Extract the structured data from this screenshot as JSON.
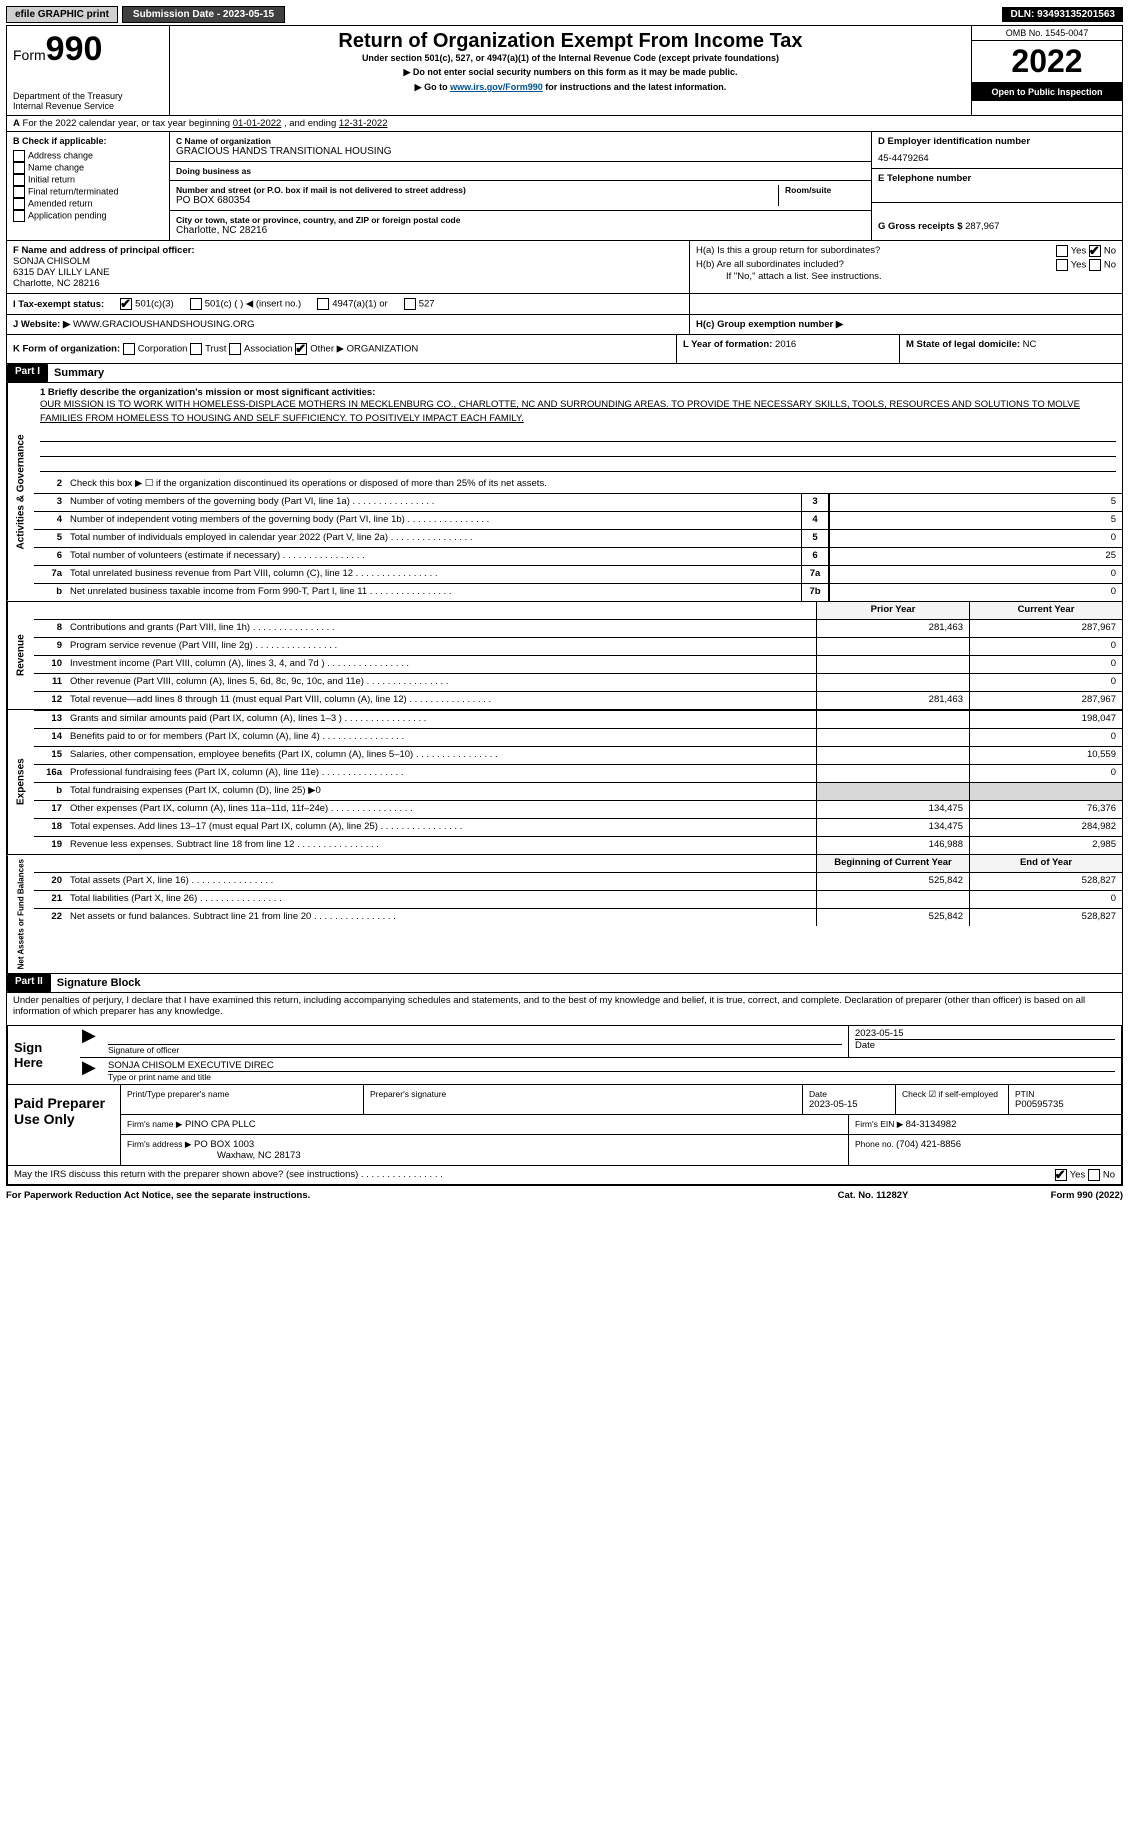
{
  "topbar": {
    "efile": "efile GRAPHIC print",
    "sub_label": "Submission Date - 2023-05-15",
    "dln": "DLN: 93493135201563"
  },
  "header": {
    "form_word": "Form",
    "form_no": "990",
    "dept1": "Department of the Treasury",
    "dept2": "Internal Revenue Service",
    "title": "Return of Organization Exempt From Income Tax",
    "sub1": "Under section 501(c), 527, or 4947(a)(1) of the Internal Revenue Code (except private foundations)",
    "sub2": "▶ Do not enter social security numbers on this form as it may be made public.",
    "sub3_pre": "▶ Go to ",
    "sub3_link": "www.irs.gov/Form990",
    "sub3_post": " for instructions and the latest information.",
    "omb": "OMB No. 1545-0047",
    "year": "2022",
    "open": "Open to Public Inspection"
  },
  "line_a": {
    "text_pre": "For the 2022 calendar year, or tax year beginning ",
    "begin": "01-01-2022",
    "mid": "   , and ending ",
    "end": "12-31-2022"
  },
  "col_b": {
    "hdr": "B Check if applicable:",
    "opts": [
      "Address change",
      "Name change",
      "Initial return",
      "Final return/terminated",
      "Amended return",
      "Application pending"
    ]
  },
  "col_c": {
    "name_lbl": "C Name of organization",
    "name": "GRACIOUS HANDS TRANSITIONAL HOUSING",
    "dba_lbl": "Doing business as",
    "dba": "",
    "street_lbl": "Number and street (or P.O. box if mail is not delivered to street address)",
    "room_lbl": "Room/suite",
    "street": "PO BOX 680354",
    "city_lbl": "City or town, state or province, country, and ZIP or foreign postal code",
    "city": "Charlotte, NC  28216"
  },
  "col_d": {
    "d_lbl": "D Employer identification number",
    "ein": "45-4479264",
    "e_lbl": "E Telephone number",
    "phone": "",
    "g_lbl": "G Gross receipts $ ",
    "g_val": "287,967"
  },
  "row_f": {
    "f_lbl": "F  Name and address of principal officer:",
    "f_name": "SONJA CHISOLM",
    "f_addr1": "6315 DAY LILLY LANE",
    "f_addr2": "Charlotte, NC  28216",
    "ha": "H(a)  Is this a group return for subordinates?",
    "hb": "H(b)  Are all subordinates included?",
    "hb_note": "If \"No,\" attach a list. See instructions.",
    "yes": "Yes",
    "no": "No"
  },
  "row_i": {
    "lbl": "I   Tax-exempt status:",
    "c3": "501(c)(3)",
    "c": "501(c) (    ) ◀ (insert no.)",
    "a1": "4947(a)(1) or",
    "_527": "527"
  },
  "row_j": {
    "lbl": "J   Website: ▶",
    "val": "WWW.GRACIOUSHANDSHOUSING.ORG",
    "hc": "H(c)  Group exemption number ▶"
  },
  "row_k": {
    "k_lbl": "K Form of organization:",
    "corp": "Corporation",
    "trust": "Trust",
    "assoc": "Association",
    "other": "Other ▶",
    "other_val": "ORGANIZATION",
    "l_lbl": "L Year of formation: ",
    "l_val": "2016",
    "m_lbl": "M State of legal domicile: ",
    "m_val": "NC"
  },
  "parts": {
    "p1": "Part I",
    "p1_title": "Summary",
    "p2": "Part II",
    "p2_title": "Signature Block"
  },
  "mission": {
    "lbl": "1  Briefly describe the organization's mission or most significant activities:",
    "text": "OUR MISSION IS TO WORK WITH HOMELESS-DISPLACE MOTHERS IN MECKLENBURG CO., CHARLOTTE, NC AND SURROUNDING AREAS. TO PROVIDE THE NECESSARY SKILLS, TOOLS, RESOURCES AND SOLUTIONS TO MOLVE FAMILIES FROM HOMELESS TO HOUSING AND SELF SUFFICIENCY. TO POSITIVELY IMPACT EACH FAMILY."
  },
  "sections": {
    "ag": "Activities & Governance",
    "rev": "Revenue",
    "exp": "Expenses",
    "net": "Net Assets or Fund Balances"
  },
  "ag_rows": [
    {
      "n": "2",
      "d": "Check this box ▶ ☐  if the organization discontinued its operations or disposed of more than 25% of its net assets."
    },
    {
      "n": "3",
      "d": "Number of voting members of the governing body (Part VI, line 1a)",
      "box": "3",
      "v": "5"
    },
    {
      "n": "4",
      "d": "Number of independent voting members of the governing body (Part VI, line 1b)",
      "box": "4",
      "v": "5"
    },
    {
      "n": "5",
      "d": "Total number of individuals employed in calendar year 2022 (Part V, line 2a)",
      "box": "5",
      "v": "0"
    },
    {
      "n": "6",
      "d": "Total number of volunteers (estimate if necessary)",
      "box": "6",
      "v": "25"
    },
    {
      "n": "7a",
      "d": "Total unrelated business revenue from Part VIII, column (C), line 12",
      "box": "7a",
      "v": "0"
    },
    {
      "n": "b",
      "d": "Net unrelated business taxable income from Form 990-T, Part I, line 11",
      "box": "7b",
      "v": "0"
    }
  ],
  "py_cy": {
    "py": "Prior Year",
    "cy": "Current Year"
  },
  "rev_rows": [
    {
      "n": "8",
      "d": "Contributions and grants (Part VIII, line 1h)",
      "py": "281,463",
      "cy": "287,967"
    },
    {
      "n": "9",
      "d": "Program service revenue (Part VIII, line 2g)",
      "py": "",
      "cy": "0"
    },
    {
      "n": "10",
      "d": "Investment income (Part VIII, column (A), lines 3, 4, and 7d )",
      "py": "",
      "cy": "0"
    },
    {
      "n": "11",
      "d": "Other revenue (Part VIII, column (A), lines 5, 6d, 8c, 9c, 10c, and 11e)",
      "py": "",
      "cy": "0"
    },
    {
      "n": "12",
      "d": "Total revenue—add lines 8 through 11 (must equal Part VIII, column (A), line 12)",
      "py": "281,463",
      "cy": "287,967"
    }
  ],
  "exp_rows": [
    {
      "n": "13",
      "d": "Grants and similar amounts paid (Part IX, column (A), lines 1–3 )",
      "py": "",
      "cy": "198,047"
    },
    {
      "n": "14",
      "d": "Benefits paid to or for members (Part IX, column (A), line 4)",
      "py": "",
      "cy": "0"
    },
    {
      "n": "15",
      "d": "Salaries, other compensation, employee benefits (Part IX, column (A), lines 5–10)",
      "py": "",
      "cy": "10,559"
    },
    {
      "n": "16a",
      "d": "Professional fundraising fees (Part IX, column (A), line 11e)",
      "py": "",
      "cy": "0"
    },
    {
      "n": "b",
      "d": "Total fundraising expenses (Part IX, column (D), line 25) ▶0",
      "grey": true
    },
    {
      "n": "17",
      "d": "Other expenses (Part IX, column (A), lines 11a–11d, 11f–24e)",
      "py": "134,475",
      "cy": "76,376"
    },
    {
      "n": "18",
      "d": "Total expenses. Add lines 13–17 (must equal Part IX, column (A), line 25)",
      "py": "134,475",
      "cy": "284,982"
    },
    {
      "n": "19",
      "d": "Revenue less expenses. Subtract line 18 from line 12",
      "py": "146,988",
      "cy": "2,985"
    }
  ],
  "net_hdr": {
    "py": "Beginning of Current Year",
    "cy": "End of Year"
  },
  "net_rows": [
    {
      "n": "20",
      "d": "Total assets (Part X, line 16)",
      "py": "525,842",
      "cy": "528,827"
    },
    {
      "n": "21",
      "d": "Total liabilities (Part X, line 26)",
      "py": "",
      "cy": "0"
    },
    {
      "n": "22",
      "d": "Net assets or fund balances. Subtract line 21 from line 20",
      "py": "525,842",
      "cy": "528,827"
    }
  ],
  "sig": {
    "decl": "Under penalties of perjury, I declare that I have examined this return, including accompanying schedules and statements, and to the best of my knowledge and belief, it is true, correct, and complete. Declaration of preparer (other than officer) is based on all information of which preparer has any knowledge.",
    "sign_here": "Sign Here",
    "sig_of_officer": "Signature of officer",
    "date_lbl": "Date",
    "sig_date": "2023-05-15",
    "name_title": "SONJA CHISOLM  EXECUTIVE DIREC",
    "type_lbl": "Type or print name and title"
  },
  "paid": {
    "hdr": "Paid Preparer Use Only",
    "pt_name_lbl": "Print/Type preparer's name",
    "pt_name": "",
    "sig_lbl": "Preparer's signature",
    "date_lbl": "Date",
    "date": "2023-05-15",
    "check_lbl": "Check ☑ if self-employed",
    "ptin_lbl": "PTIN",
    "ptin": "P00595735",
    "firm_name_lbl": "Firm's name    ▶",
    "firm_name": "PINO CPA PLLC",
    "firm_ein_lbl": "Firm's EIN ▶ ",
    "firm_ein": "84-3134982",
    "firm_addr_lbl": "Firm's address ▶",
    "firm_addr1": "PO BOX 1003",
    "firm_addr2": "Waxhaw, NC  28173",
    "phone_lbl": "Phone no. ",
    "phone": "(704) 421-8856"
  },
  "foot": {
    "q": "May the IRS discuss this return with the preparer shown above? (see instructions)",
    "yes": "Yes",
    "no": "No",
    "pra": "For Paperwork Reduction Act Notice, see the separate instructions.",
    "cat": "Cat. No. 11282Y",
    "form": "Form 990 (2022)"
  }
}
